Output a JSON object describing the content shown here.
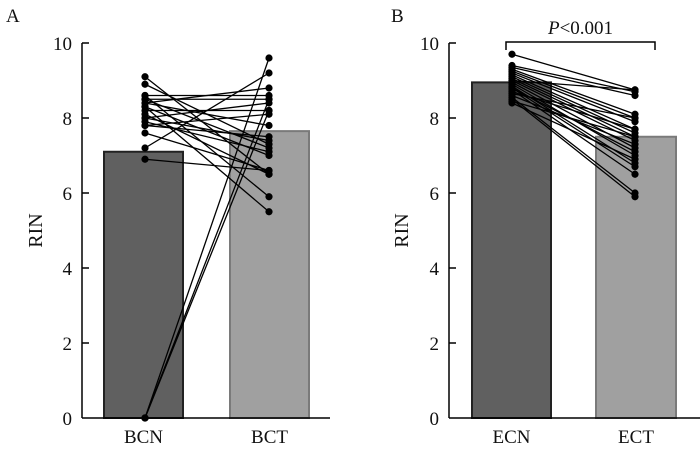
{
  "chart_data": [
    {
      "type": "bar",
      "panel": "A",
      "title": "",
      "xlabel": "",
      "ylabel": "RIN",
      "ylim": [
        0,
        10
      ],
      "yticks": [
        0,
        2,
        4,
        6,
        8,
        10
      ],
      "categories": [
        "BCN",
        "BCT"
      ],
      "values": [
        7.1,
        7.65
      ],
      "bar_colors": [
        "#606060",
        "#a0a0a0"
      ],
      "annotation": "",
      "paired": [
        [
          9.1,
          6.5
        ],
        [
          8.9,
          7.3
        ],
        [
          8.6,
          8.6
        ],
        [
          8.5,
          8.5
        ],
        [
          8.5,
          7.2
        ],
        [
          8.4,
          8.8
        ],
        [
          8.3,
          7.0
        ],
        [
          8.2,
          8.2
        ],
        [
          8.1,
          6.5
        ],
        [
          8.0,
          8.4
        ],
        [
          7.9,
          7.1
        ],
        [
          7.8,
          7.5
        ],
        [
          7.6,
          6.6
        ],
        [
          7.2,
          9.2
        ],
        [
          6.9,
          6.6
        ],
        [
          8.6,
          5.9
        ],
        [
          8.3,
          5.5
        ],
        [
          8.0,
          7.4
        ],
        [
          7.8,
          8.1
        ],
        [
          8.4,
          7.8
        ],
        [
          0.0,
          9.6
        ],
        [
          0.0,
          8.5
        ],
        [
          0.0,
          8.2
        ]
      ]
    },
    {
      "type": "bar",
      "panel": "B",
      "title": "",
      "xlabel": "",
      "ylabel": "RIN",
      "ylim": [
        0,
        10
      ],
      "yticks": [
        0,
        2,
        4,
        6,
        8,
        10
      ],
      "categories": [
        "ECN",
        "ECT"
      ],
      "values": [
        8.95,
        7.5
      ],
      "bar_colors": [
        "#606060",
        "#a0a0a0"
      ],
      "annotation": "P<0.001",
      "paired": [
        [
          9.7,
          8.75
        ],
        [
          9.4,
          8.7
        ],
        [
          9.35,
          8.6
        ],
        [
          9.3,
          8.1
        ],
        [
          9.25,
          8.0
        ],
        [
          9.2,
          7.9
        ],
        [
          9.15,
          7.7
        ],
        [
          9.1,
          7.6
        ],
        [
          9.05,
          7.5
        ],
        [
          9.0,
          7.4
        ],
        [
          8.95,
          7.2
        ],
        [
          8.9,
          7.0
        ],
        [
          8.85,
          6.8
        ],
        [
          8.8,
          6.7
        ],
        [
          8.75,
          6.5
        ],
        [
          8.7,
          7.7
        ],
        [
          8.65,
          8.0
        ],
        [
          8.6,
          7.3
        ],
        [
          8.55,
          6.0
        ],
        [
          8.5,
          5.9
        ],
        [
          8.45,
          7.5
        ],
        [
          8.4,
          6.9
        ],
        [
          9.0,
          8.75
        ],
        [
          8.8,
          7.1
        ]
      ]
    }
  ]
}
